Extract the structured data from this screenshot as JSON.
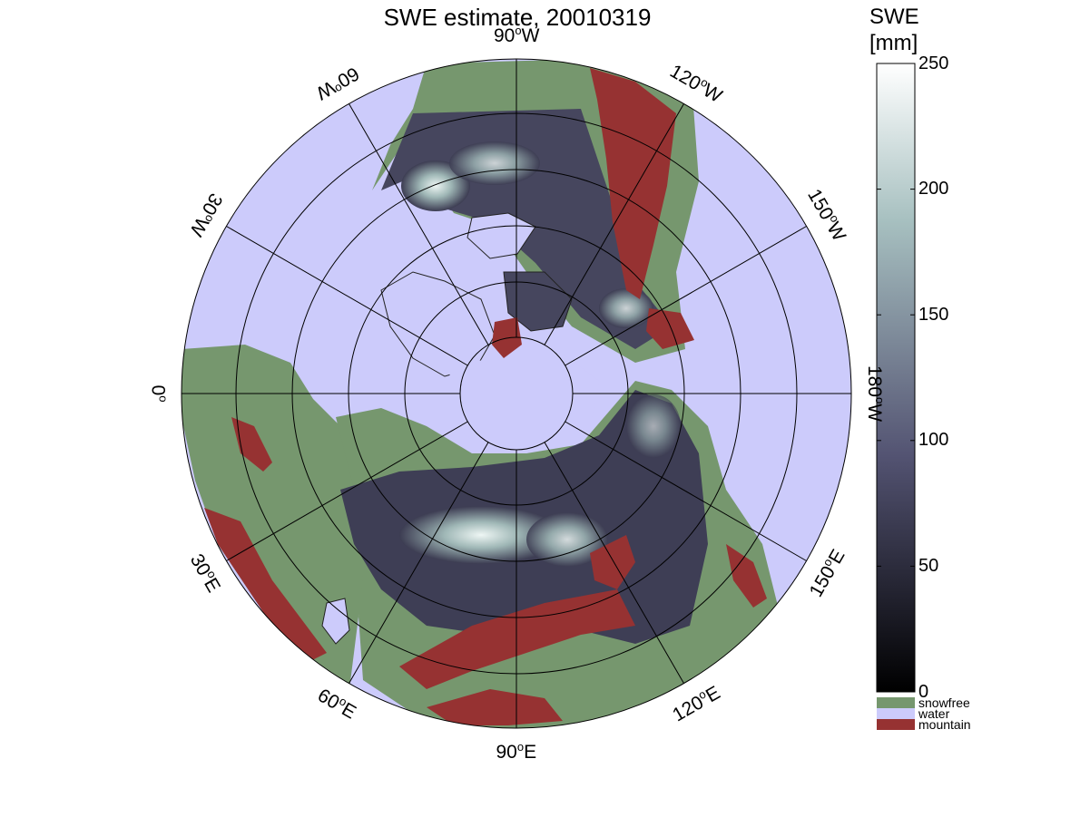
{
  "title": "SWE estimate, 20010319",
  "colorbar": {
    "label_line1": "SWE",
    "label_line2": "[mm]",
    "ticks": [
      "250",
      "200",
      "150",
      "100",
      "50",
      "0"
    ],
    "range_mm": [
      0,
      250
    ],
    "colormap": "bone"
  },
  "legend": [
    {
      "label": "snowfree",
      "color": "#76976e"
    },
    {
      "label": "water",
      "color": "#cccbfb"
    },
    {
      "label": "mountain",
      "color": "#963232"
    }
  ],
  "map": {
    "projection": "north polar stereographic",
    "colors": {
      "water": "#cccbfb",
      "land_snowfree": "#76976e",
      "mountain": "#963232",
      "grid": "#000000"
    },
    "longitude_labels": [
      {
        "deg": "90",
        "hemi": "W"
      },
      {
        "deg": "120",
        "hemi": "W"
      },
      {
        "deg": "150",
        "hemi": "W"
      },
      {
        "deg": "180",
        "hemi": "W"
      },
      {
        "deg": "150",
        "hemi": "E"
      },
      {
        "deg": "120",
        "hemi": "E"
      },
      {
        "deg": "90",
        "hemi": "E"
      },
      {
        "deg": "60",
        "hemi": "E"
      },
      {
        "deg": "30",
        "hemi": "E"
      },
      {
        "deg": "0",
        "hemi": ""
      },
      {
        "deg": "30",
        "hemi": "W"
      },
      {
        "deg": "60",
        "hemi": "W"
      }
    ]
  }
}
